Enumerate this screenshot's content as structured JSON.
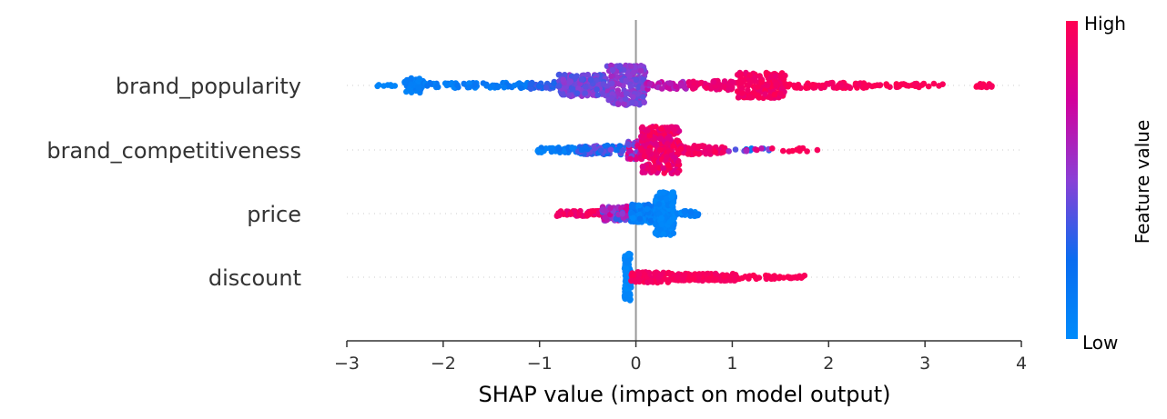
{
  "chart_data": {
    "type": "scatter",
    "subtype": "shap-beeswarm",
    "xlabel": "SHAP value (impact on model output)",
    "xlim": [
      -3,
      4
    ],
    "xticks": [
      -3,
      -2,
      -1,
      0,
      1,
      2,
      3,
      4
    ],
    "tick_labels": [
      "−3",
      "−2",
      "−1",
      "0",
      "1",
      "2",
      "3",
      "4"
    ],
    "features": [
      "brand_popularity",
      "brand_competitiveness",
      "price",
      "discount"
    ],
    "colorbar": {
      "label": "Feature value",
      "high": "High",
      "low": "Low",
      "high_color": "#ff0052",
      "mid_color": "#c000b0",
      "low_color": "#008bfb"
    },
    "zero_line_color": "#999999",
    "grid": false
  }
}
